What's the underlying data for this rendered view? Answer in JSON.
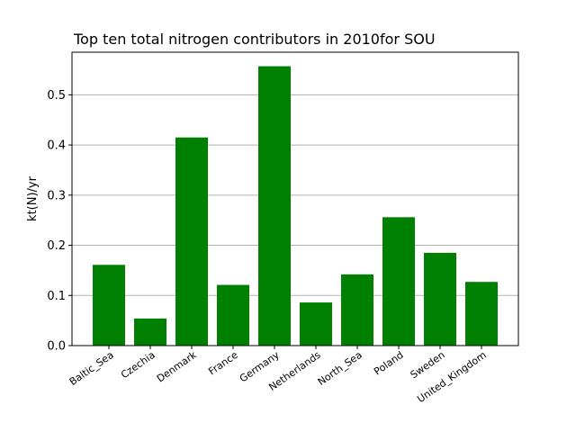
{
  "chart_data": {
    "type": "bar",
    "title": "Top ten total nitrogen contributors in 2010for  SOU",
    "xlabel": "",
    "ylabel": "kt(N)/yr",
    "categories": [
      "Baltic_Sea",
      "Czechia",
      "Denmark",
      "France",
      "Germany",
      "Netherlands",
      "North_Sea",
      "Poland",
      "Sweden",
      "United_Kingdom"
    ],
    "values": [
      0.161,
      0.054,
      0.415,
      0.121,
      0.557,
      0.086,
      0.142,
      0.256,
      0.185,
      0.127
    ],
    "ylim": [
      0,
      0.585
    ],
    "yticks": [
      0.0,
      0.1,
      0.2,
      0.3,
      0.4,
      0.5
    ],
    "ytick_labels": [
      "0.0",
      "0.1",
      "0.2",
      "0.3",
      "0.4",
      "0.5"
    ],
    "grid": "horizontal",
    "bar_color": "#008000"
  }
}
